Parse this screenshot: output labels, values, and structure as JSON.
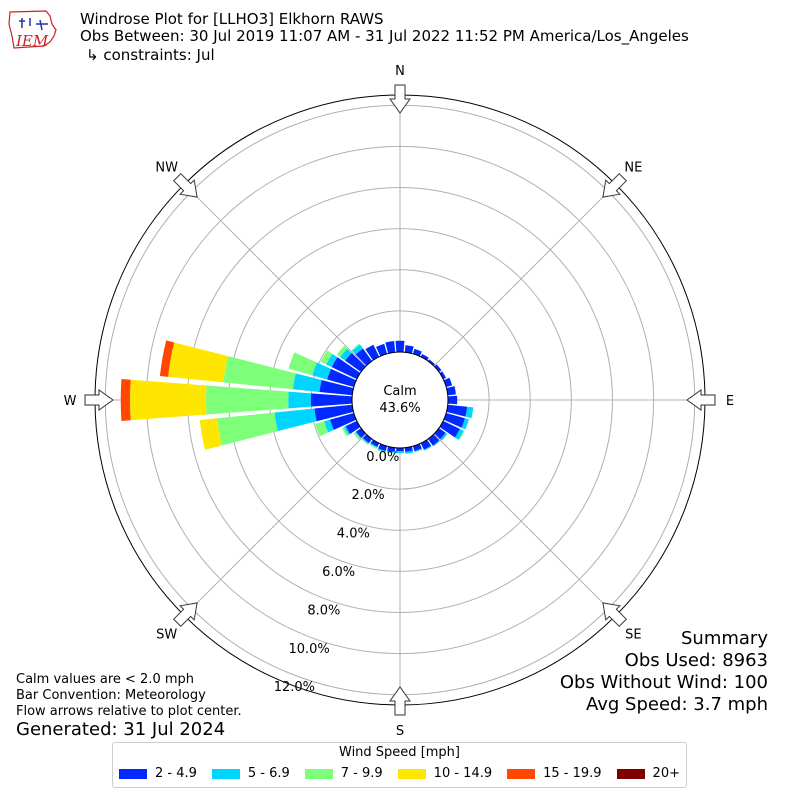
{
  "header": {
    "title": "Windrose Plot for [LLHO3] Elkhorn RAWS",
    "obs_between": "Obs Between: 30 Jul 2019 11:07 AM - 31 Jul 2022 11:52 PM America/Los_Angeles",
    "constraints": "↳ constraints: Jul",
    "logo_text": "IEM"
  },
  "notes": {
    "calm_def": "Calm values are < 2.0 mph",
    "bar_convention": "Bar Convention: Meteorology",
    "flow_arrows": "Flow arrows relative to plot center.",
    "generated": "Generated: 31 Jul 2024"
  },
  "summary": {
    "heading": "Summary",
    "obs_used": "Obs Used: 8963",
    "obs_without_wind": "Obs Without Wind: 100",
    "avg_speed": "Avg Speed: 3.7 mph"
  },
  "legend": {
    "title": "Wind Speed [mph]",
    "items": [
      {
        "label": "2 - 4.9",
        "color": "#0028ff"
      },
      {
        "label": "5 - 6.9",
        "color": "#00d5ff"
      },
      {
        "label": "7 - 9.9",
        "color": "#7dff7a"
      },
      {
        "label": "10 - 14.9",
        "color": "#ffe600"
      },
      {
        "label": "15 - 19.9",
        "color": "#ff4700"
      },
      {
        "label": "20+",
        "color": "#7f0000"
      }
    ]
  },
  "chart_data": {
    "type": "windrose",
    "calm_label": "Calm",
    "calm_percent_label": "43.6%",
    "r_tick_labels": [
      "0.0%",
      "2.0%",
      "4.0%",
      "6.0%",
      "8.0%",
      "10.0%",
      "12.0%"
    ],
    "r_ticks": [
      0,
      2,
      4,
      6,
      8,
      10,
      12
    ],
    "r_max": 12.5,
    "directions": [
      "N",
      "NE",
      "E",
      "SE",
      "S",
      "SW",
      "W",
      "NW"
    ],
    "speed_bins": [
      "2 - 4.9",
      "5 - 6.9",
      "7 - 9.9",
      "10 - 14.9",
      "15 - 19.9",
      "20+"
    ],
    "sector_angles_deg": [
      0,
      10,
      20,
      30,
      40,
      50,
      60,
      70,
      80,
      90,
      100,
      110,
      120,
      130,
      140,
      150,
      160,
      170,
      180,
      190,
      200,
      210,
      220,
      230,
      240,
      250,
      260,
      270,
      280,
      290,
      300,
      310,
      320,
      330,
      340,
      350
    ],
    "cumulative_percent": [
      [
        0.55,
        0,
        0,
        0,
        0,
        0
      ],
      [
        0.35,
        0,
        0,
        0,
        0,
        0
      ],
      [
        0.25,
        0,
        0,
        0,
        0,
        0
      ],
      [
        0.15,
        0,
        0,
        0,
        0,
        0
      ],
      [
        0.1,
        0,
        0,
        0,
        0,
        0
      ],
      [
        0.15,
        0,
        0,
        0,
        0,
        0
      ],
      [
        0.15,
        0,
        0,
        0,
        0,
        0
      ],
      [
        0.3,
        0,
        0,
        0,
        0,
        0
      ],
      [
        0.4,
        0,
        0,
        0,
        0,
        0
      ],
      [
        0.45,
        0,
        0,
        0,
        0,
        0
      ],
      [
        0.95,
        1.25,
        1.25,
        1.25,
        1.25,
        1.25
      ],
      [
        0.95,
        1.15,
        1.15,
        1.15,
        1.15,
        1.15
      ],
      [
        0.9,
        1.1,
        1.15,
        1.15,
        1.15,
        1.15
      ],
      [
        0.4,
        0.5,
        0.5,
        0.5,
        0.5,
        0.5
      ],
      [
        0.4,
        0.45,
        0.45,
        0.45,
        0.45,
        0.45
      ],
      [
        0.35,
        0.4,
        0.4,
        0.4,
        0.4,
        0.4
      ],
      [
        0.25,
        0.3,
        0.3,
        0.3,
        0.3,
        0.3
      ],
      [
        0.2,
        0.3,
        0.3,
        0.3,
        0.3,
        0.3
      ],
      [
        0.15,
        0.25,
        0.25,
        0.25,
        0.25,
        0.25
      ],
      [
        0.2,
        0.25,
        0.3,
        0.3,
        0.3,
        0.3
      ],
      [
        0.25,
        0.3,
        0.35,
        0.35,
        0.35,
        0.35
      ],
      [
        0.2,
        0.25,
        0.3,
        0.3,
        0.3,
        0.3
      ],
      [
        0.25,
        0.3,
        0.35,
        0.35,
        0.35,
        0.35
      ],
      [
        0.3,
        0.35,
        0.45,
        0.45,
        0.45,
        0.45
      ],
      [
        0.6,
        0.7,
        0.8,
        0.8,
        0.8,
        0.8
      ],
      [
        1.2,
        1.5,
        1.95,
        1.95,
        1.95,
        1.95
      ],
      [
        1.85,
        3.8,
        6.6,
        7.45,
        7.45,
        7.45
      ],
      [
        2.0,
        3.1,
        7.1,
        10.8,
        11.25,
        11.25
      ],
      [
        1.6,
        2.9,
        6.3,
        9.0,
        9.4,
        9.4
      ],
      [
        1.35,
        2.1,
        3.3,
        3.3,
        3.3,
        3.3
      ],
      [
        1.35,
        1.65,
        1.95,
        1.95,
        1.95,
        1.95
      ],
      [
        0.95,
        1.25,
        1.45,
        1.45,
        1.45,
        1.45
      ],
      [
        0.75,
        1.0,
        1.05,
        1.05,
        1.05,
        1.05
      ],
      [
        0.65,
        0.65,
        0.65,
        0.65,
        0.65,
        0.65
      ],
      [
        0.5,
        0.5,
        0.5,
        0.5,
        0.5,
        0.5
      ],
      [
        0.55,
        0.55,
        0.55,
        0.55,
        0.55,
        0.55
      ]
    ]
  }
}
